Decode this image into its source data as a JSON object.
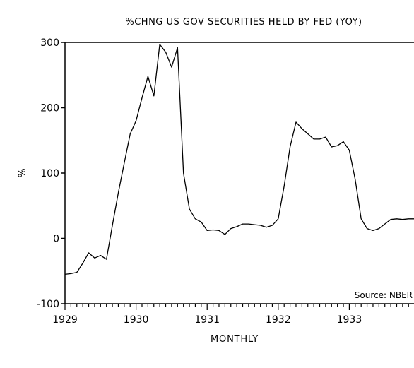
{
  "chart_data": {
    "type": "line",
    "title": "%CHNG US GOV SECURITIES HELD BY FED (YOY)",
    "xlabel": "MONTHLY",
    "ylabel": "%",
    "annotation": "Source: NBER",
    "ylim": [
      -100,
      300
    ],
    "y_ticks": [
      300,
      200,
      100,
      0,
      -100
    ],
    "y_tick_labels": [
      "300",
      "200",
      "100",
      "0",
      "-100"
    ],
    "x_ticks": [
      1929,
      1930,
      1931,
      1932,
      1933
    ],
    "x_tick_labels": [
      "1929",
      "1930",
      "1931",
      "1932",
      "1933"
    ],
    "xlim": [
      1929.0,
      1933.95
    ],
    "grid": false,
    "series": [
      {
        "color": "#000000",
        "x": [
          1929.0,
          1929.083,
          1929.167,
          1929.25,
          1929.333,
          1929.417,
          1929.5,
          1929.583,
          1929.667,
          1929.75,
          1929.833,
          1929.917,
          1930.0,
          1930.083,
          1930.167,
          1930.25,
          1930.333,
          1930.417,
          1930.5,
          1930.583,
          1930.667,
          1930.75,
          1930.833,
          1930.917,
          1931.0,
          1931.083,
          1931.167,
          1931.25,
          1931.333,
          1931.417,
          1931.5,
          1931.583,
          1931.667,
          1931.75,
          1931.833,
          1931.917,
          1932.0,
          1932.083,
          1932.167,
          1932.25,
          1932.333,
          1932.417,
          1932.5,
          1932.583,
          1932.667,
          1932.75,
          1932.833,
          1932.917,
          1933.0,
          1933.083,
          1933.167,
          1933.25,
          1933.333,
          1933.417,
          1933.5,
          1933.583,
          1933.667,
          1933.75,
          1933.833,
          1933.917
        ],
        "y": [
          -55,
          -54,
          -52,
          -38,
          -22,
          -30,
          -26,
          -32,
          20,
          70,
          115,
          160,
          180,
          215,
          248,
          218,
          297,
          285,
          262,
          292,
          100,
          45,
          30,
          25,
          12,
          13,
          12,
          6,
          15,
          18,
          22,
          22,
          21,
          20,
          17,
          20,
          30,
          80,
          140,
          178,
          168,
          160,
          152,
          152,
          155,
          140,
          142,
          148,
          135,
          90,
          30,
          15,
          12,
          15,
          22,
          29,
          30,
          29,
          30,
          30
        ]
      }
    ]
  }
}
